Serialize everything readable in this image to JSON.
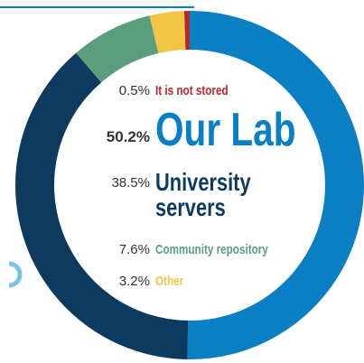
{
  "chart_data": {
    "type": "pie",
    "donut": true,
    "categories": [
      "It is not stored",
      "Our Lab",
      "University servers",
      "Community repository",
      "Other"
    ],
    "values": [
      0.5,
      50.2,
      38.5,
      7.6,
      3.2
    ],
    "value_labels": [
      "0.5%",
      "50.2%",
      "38.5%",
      "7.6%",
      "3.2%"
    ],
    "colors": [
      "#b3282d",
      "#0a7fc4",
      "#0d3a5f",
      "#5b9e7e",
      "#f1c644"
    ]
  }
}
